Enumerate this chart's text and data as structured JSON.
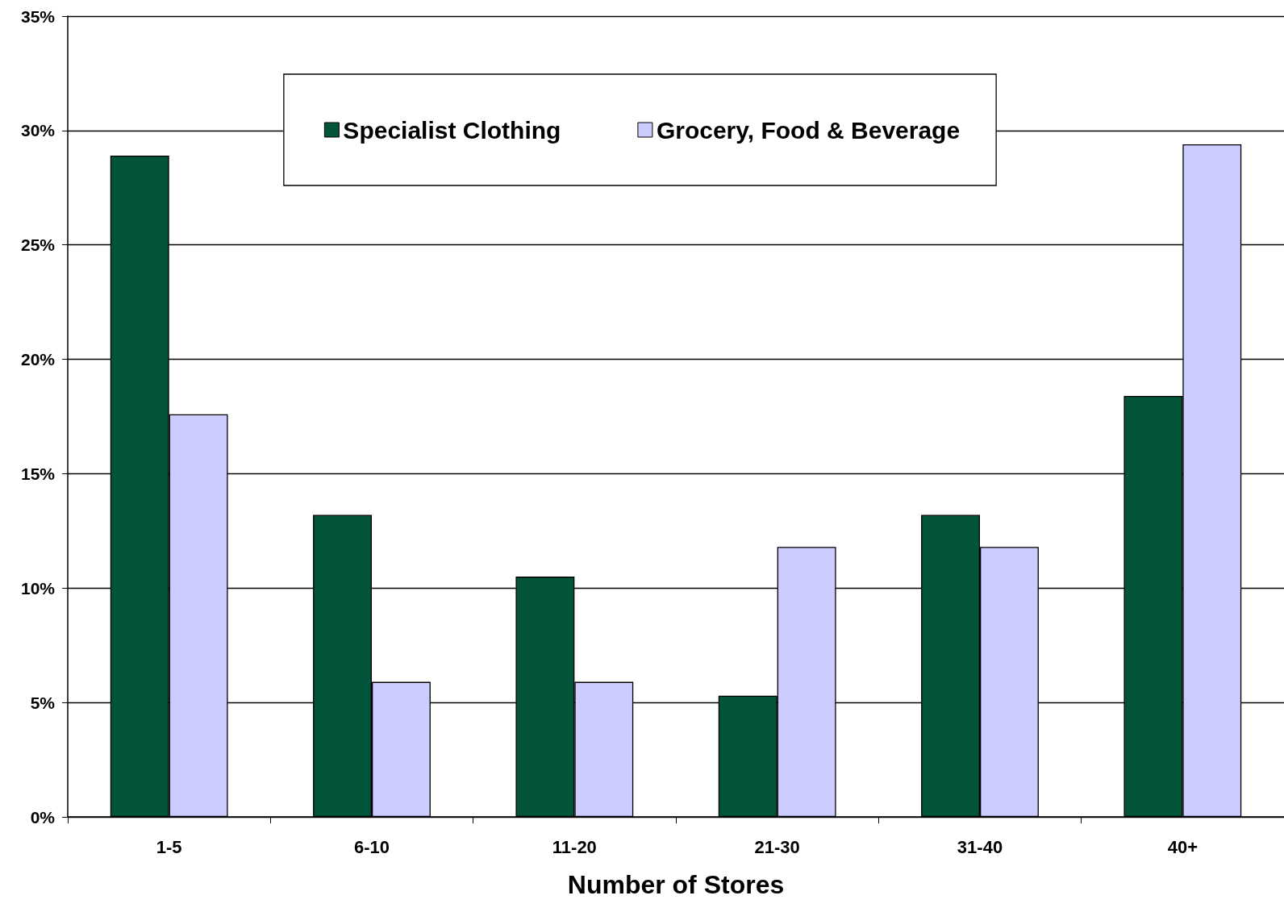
{
  "chart_data": {
    "type": "bar",
    "xlabel": "Number of Stores",
    "categories": [
      "1-5",
      "6-10",
      "11-20",
      "21-30",
      "31-40",
      "40+"
    ],
    "series": [
      {
        "name": "Specialist Clothing",
        "color": "#02553b",
        "values": [
          28.9,
          13.2,
          10.5,
          5.3,
          13.2,
          18.4
        ]
      },
      {
        "name": "Grocery, Food & Beverage",
        "color": "#ccccff",
        "values": [
          17.6,
          5.9,
          5.9,
          11.8,
          11.8,
          29.4
        ]
      }
    ],
    "ylim": [
      0,
      35
    ],
    "yticks": [
      {
        "value": 0,
        "label": "0%"
      },
      {
        "value": 5,
        "label": "5%"
      },
      {
        "value": 10,
        "label": "10%"
      },
      {
        "value": 15,
        "label": "15%"
      },
      {
        "value": 20,
        "label": "20%"
      },
      {
        "value": 25,
        "label": "25%"
      },
      {
        "value": 30,
        "label": "30%"
      },
      {
        "value": 35,
        "label": "35%"
      }
    ],
    "grid": "y",
    "legend": "top"
  }
}
